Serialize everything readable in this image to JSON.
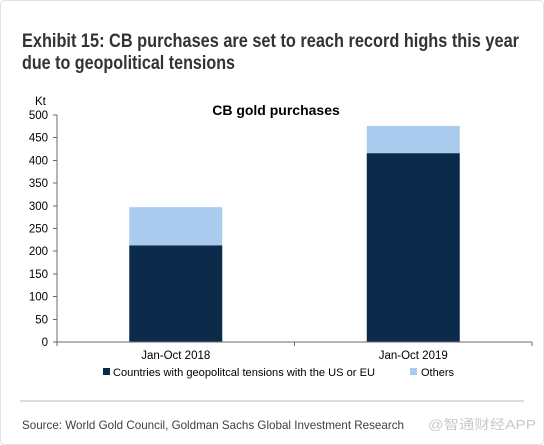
{
  "exhibit": {
    "title_lines": [
      "Exhibit 15: CB purchases are set to reach record highs this year",
      "due to geopolitical tensions"
    ],
    "source": "Source: World Gold Council, Goldman Sachs Global Investment Research",
    "watermark": "@智通财经APP"
  },
  "chart_data": {
    "type": "bar",
    "stacked": true,
    "title": "CB gold purchases",
    "xlabel": "",
    "ylabel": "Kt",
    "categories": [
      "Jan-Oct 2018",
      "Jan-Oct 2019"
    ],
    "series": [
      {
        "name": "Countries with geopolitcal tensions with the US or EU",
        "values": [
          213,
          416
        ],
        "color": "#0c2a49"
      },
      {
        "name": "Others",
        "values": [
          84,
          60
        ],
        "color": "#a9cbee"
      }
    ],
    "ylim": [
      0,
      500
    ],
    "yticks": [
      0,
      50,
      100,
      150,
      200,
      250,
      300,
      350,
      400,
      450,
      500
    ],
    "grid": false,
    "legend": "bottom"
  }
}
